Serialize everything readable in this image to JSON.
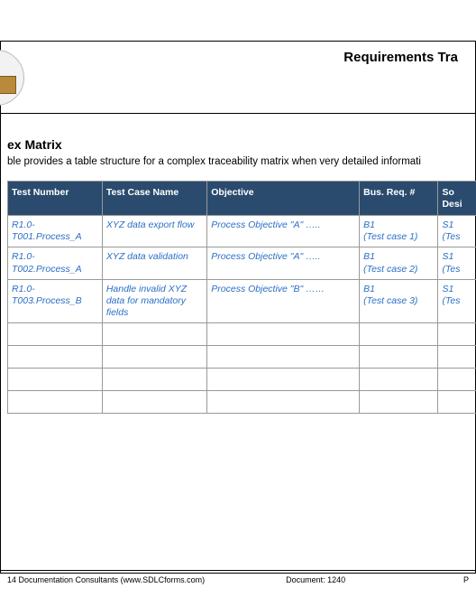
{
  "header": {
    "doc_title": "Requirements Tra"
  },
  "section": {
    "title": "ex Matrix",
    "description": "ble provides a table structure for a complex traceability matrix when very detailed informati"
  },
  "table": {
    "headers": {
      "test_number": "Test Number",
      "test_case_name": "Test Case Name",
      "objective": "Objective",
      "bus_req": "Bus. Req. #",
      "design": "So\nDesi"
    },
    "rows": [
      {
        "test_number": "R1.0-\nT001.Process_A",
        "test_case_name": "XYZ data export flow",
        "objective": "Process Objective \"A\" …..",
        "bus_req": "B1\n(Test case 1)",
        "design": "S1\n(Tes"
      },
      {
        "test_number": "R1.0-\nT002.Process_A",
        "test_case_name": "XYZ data validation",
        "objective": "Process Objective \"A\" …..",
        "bus_req": "B1\n(Test case 2)",
        "design": "S1\n(Tes"
      },
      {
        "test_number": "R1.0-\nT003.Process_B",
        "test_case_name": "Handle invalid XYZ data for mandatory fields",
        "objective": "Process Objective \"B\" ……",
        "bus_req": "B1\n(Test case 3)",
        "design": "S1\n(Tes"
      }
    ],
    "empty_rows": 4
  },
  "footer": {
    "copyright": "14 Documentation Consultants (www.SDLCforms.com)",
    "document": "Document:  1240",
    "page": "P"
  },
  "colors": {
    "header_bg": "#2a4b6e",
    "header_text": "#ffffff",
    "cell_text": "#2a6fc4",
    "border": "#999999"
  }
}
